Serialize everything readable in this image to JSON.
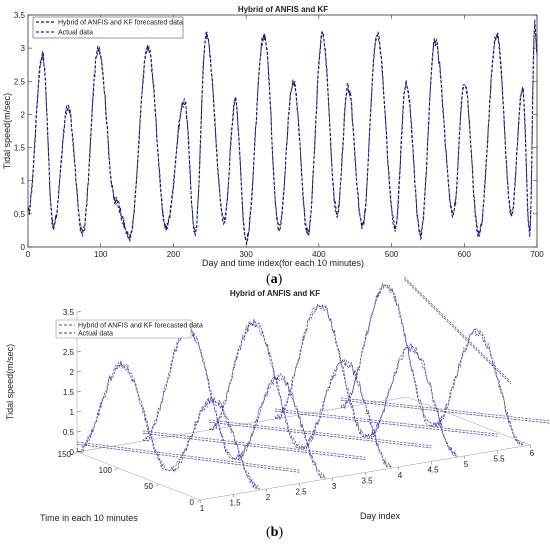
{
  "captions": {
    "a_prefix": "(",
    "a_letter": "a",
    "a_suffix": ")",
    "b_prefix": "(",
    "b_letter": "b",
    "b_suffix": ")"
  },
  "chart_data": [
    {
      "type": "line",
      "title": "Hybrid of ANFIS and KF",
      "xlabel": "Day and time index(for each 10 minutes)",
      "ylabel": "Tidal speed(m/sec)",
      "xlim": [
        0,
        700
      ],
      "ylim": [
        0,
        3.5
      ],
      "xticks": [
        "0",
        "100",
        "200",
        "300",
        "400",
        "500",
        "600",
        "700"
      ],
      "yticks": [
        "0",
        "0.5",
        "1",
        "1.5",
        "2",
        "2.5",
        "3",
        "3.5"
      ],
      "legend_position": "top-left",
      "series": [
        {
          "name": "Hybrid of ANFIS and KF forecasted data",
          "style": "dashed",
          "color": "#1a1a3a"
        },
        {
          "name": "Actual data",
          "style": "dashed",
          "color": "#2222dd"
        }
      ],
      "peaks": [
        {
          "x": 0,
          "y": 0.5
        },
        {
          "x": 20,
          "y": 2.9
        },
        {
          "x": 35,
          "y": 0.3
        },
        {
          "x": 55,
          "y": 2.1
        },
        {
          "x": 75,
          "y": 0.2
        },
        {
          "x": 97,
          "y": 3.0
        },
        {
          "x": 120,
          "y": 0.7
        },
        {
          "x": 140,
          "y": 0.15
        },
        {
          "x": 165,
          "y": 3.0
        },
        {
          "x": 190,
          "y": 0.3
        },
        {
          "x": 215,
          "y": 2.2
        },
        {
          "x": 230,
          "y": 0.2
        },
        {
          "x": 245,
          "y": 3.2
        },
        {
          "x": 270,
          "y": 0.4
        },
        {
          "x": 285,
          "y": 2.2
        },
        {
          "x": 300,
          "y": 0.1
        },
        {
          "x": 325,
          "y": 3.2
        },
        {
          "x": 345,
          "y": 0.3
        },
        {
          "x": 365,
          "y": 2.5
        },
        {
          "x": 385,
          "y": 0.2
        },
        {
          "x": 405,
          "y": 3.2
        },
        {
          "x": 425,
          "y": 0.5
        },
        {
          "x": 440,
          "y": 2.4
        },
        {
          "x": 460,
          "y": 0.3
        },
        {
          "x": 480,
          "y": 3.2
        },
        {
          "x": 505,
          "y": 0.3
        },
        {
          "x": 520,
          "y": 2.5
        },
        {
          "x": 540,
          "y": 0.2
        },
        {
          "x": 560,
          "y": 3.1
        },
        {
          "x": 585,
          "y": 0.5
        },
        {
          "x": 600,
          "y": 2.5
        },
        {
          "x": 620,
          "y": 0.2
        },
        {
          "x": 645,
          "y": 3.2
        },
        {
          "x": 665,
          "y": 0.5
        },
        {
          "x": 680,
          "y": 2.4
        },
        {
          "x": 690,
          "y": 0.2
        },
        {
          "x": 697,
          "y": 3.4
        },
        {
          "x": 700,
          "y": 2.9
        }
      ]
    },
    {
      "type": "line",
      "title": "Hybrid of ANFIS and KF",
      "xlabel": "Day index",
      "ylabel": "Tidal speed(m/sec)",
      "zlabel": "Time in each 10 minutes",
      "xticks": [
        "1",
        "1.5",
        "2",
        "2.5",
        "3",
        "3.5",
        "4",
        "4.5",
        "5",
        "5.5",
        "6"
      ],
      "yticks": [
        "0",
        "0.5",
        "1",
        "1.5",
        "2",
        "2.5",
        "3",
        "3.5"
      ],
      "zticks": [
        "0",
        "50",
        "100",
        "150"
      ],
      "legend_position": "top-left",
      "series": [
        {
          "name": "Hybrid of ANFIS and KF forecasted data",
          "style": "dashed",
          "color": "#555577"
        },
        {
          "name": "Actual data",
          "style": "dashed",
          "color": "#3333cc"
        }
      ]
    }
  ]
}
